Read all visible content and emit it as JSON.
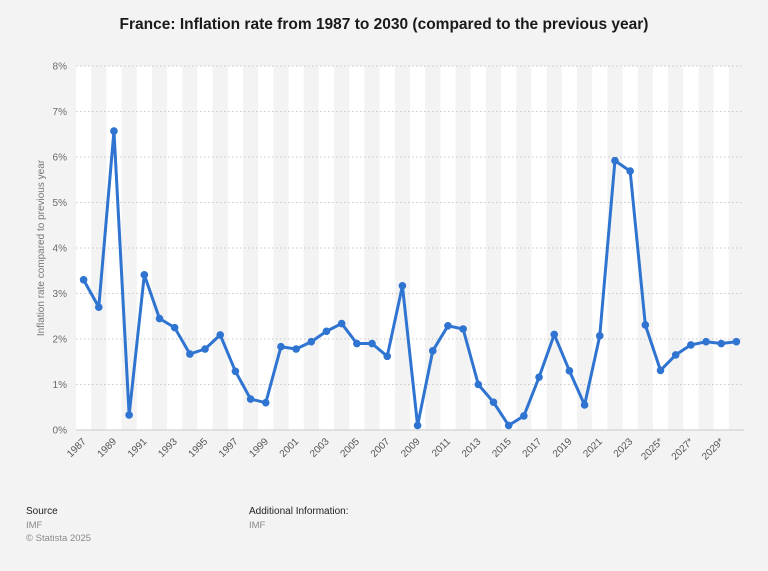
{
  "chart_data": {
    "type": "line",
    "title": "France: Inflation rate from 1987 to 2030 (compared to the previous year)",
    "xlabel": "",
    "ylabel": "Inflation rate compared to previous year",
    "ylim": [
      0,
      8
    ],
    "y_ticks": [
      "0%",
      "1%",
      "2%",
      "3%",
      "4%",
      "5%",
      "6%",
      "7%",
      "8%"
    ],
    "x_tick_labels": [
      "1987",
      "1989",
      "1991",
      "1993",
      "1995",
      "1997",
      "1999",
      "2001",
      "2003",
      "2005",
      "2007",
      "2009",
      "2011",
      "2013",
      "2015",
      "2017",
      "2019",
      "2021",
      "2023",
      "2025*",
      "2027*",
      "2029*"
    ],
    "x": [
      "1987",
      "1988",
      "1989",
      "1990",
      "1991",
      "1992",
      "1993",
      "1994",
      "1995",
      "1996",
      "1997",
      "1998",
      "1999",
      "2000",
      "2001",
      "2002",
      "2003",
      "2004",
      "2005",
      "2006",
      "2007",
      "2008",
      "2009",
      "2010",
      "2011",
      "2012",
      "2013",
      "2014",
      "2015",
      "2016",
      "2017",
      "2018",
      "2019",
      "2020",
      "2021",
      "2022",
      "2023",
      "2024",
      "2025*",
      "2026*",
      "2027*",
      "2028*",
      "2029*",
      "2030*"
    ],
    "series": [
      {
        "name": "Inflation rate",
        "color": "#2f74d0",
        "values": [
          3.3,
          2.7,
          6.57,
          0.33,
          3.41,
          2.45,
          2.25,
          1.67,
          1.78,
          2.09,
          1.29,
          0.68,
          0.6,
          1.83,
          1.78,
          1.94,
          2.17,
          2.34,
          1.9,
          1.9,
          1.62,
          3.17,
          0.1,
          1.74,
          2.29,
          2.22,
          1.0,
          0.61,
          0.1,
          0.31,
          1.16,
          2.1,
          1.3,
          0.55,
          2.07,
          5.92,
          5.69,
          2.31,
          1.31,
          1.65,
          1.87,
          1.94,
          1.9,
          1.94
        ]
      }
    ],
    "grid": true
  },
  "footer": {
    "source_label": "Source",
    "source_value": "IMF",
    "copyright": "© Statista 2025",
    "additional_label": "Additional Information:",
    "additional_value": "IMF"
  }
}
